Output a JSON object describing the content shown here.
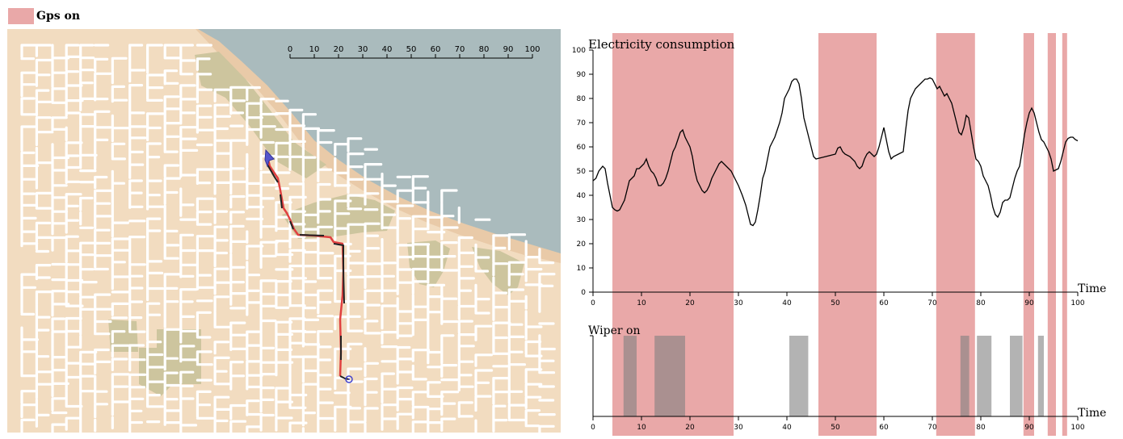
{
  "legend": {
    "label": "Gps on",
    "color": "#e9a8a8"
  },
  "map": {
    "scalebar": {
      "labels": [
        "0",
        "10",
        "20",
        "30",
        "40",
        "50",
        "60",
        "70",
        "80",
        "90",
        "100"
      ]
    },
    "colors": {
      "land": "#f2dcc0",
      "water": "#aabbbd",
      "park": "#cdc59e",
      "road": "#ffffff",
      "route_red": "#e04040",
      "route_black": "#222222",
      "marker": "#4444cc"
    }
  },
  "chart_data": [
    {
      "type": "line",
      "title": "Electricity consumption",
      "xlabel": "Time",
      "ylabel": "",
      "xlim": [
        0,
        100
      ],
      "ylim": [
        0,
        100
      ],
      "xticks": [
        0,
        10,
        20,
        30,
        40,
        50,
        60,
        70,
        80,
        90,
        100
      ],
      "yticks": [
        0,
        10,
        20,
        30,
        40,
        50,
        60,
        70,
        80,
        90,
        100
      ],
      "gps_on_intervals": [
        [
          4,
          29
        ],
        [
          46.5,
          58.5
        ],
        [
          70.8,
          78.8
        ],
        [
          88.8,
          91
        ],
        [
          93.8,
          95.5
        ],
        [
          96.8,
          97.8
        ]
      ],
      "series": [
        {
          "color": "#000000",
          "points": [
            [
              0,
              46
            ],
            [
              0.6,
              47
            ],
            [
              1.2,
              50
            ],
            [
              2,
              52
            ],
            [
              2.5,
              51
            ],
            [
              3,
              45
            ],
            [
              3.5,
              40
            ],
            [
              4,
              35
            ],
            [
              4.5,
              34
            ],
            [
              5,
              33.5
            ],
            [
              5.5,
              34
            ],
            [
              6,
              36
            ],
            [
              6.5,
              38
            ],
            [
              7,
              42
            ],
            [
              7.5,
              46
            ],
            [
              8,
              47
            ],
            [
              8.5,
              48
            ],
            [
              9,
              51
            ],
            [
              9.5,
              51
            ],
            [
              10,
              52
            ],
            [
              10.5,
              53
            ],
            [
              11,
              55
            ],
            [
              11.5,
              52
            ],
            [
              12,
              50
            ],
            [
              12.5,
              49
            ],
            [
              13,
              47
            ],
            [
              13.5,
              44
            ],
            [
              14,
              44
            ],
            [
              14.5,
              45
            ],
            [
              15,
              47
            ],
            [
              15.5,
              50
            ],
            [
              16,
              54
            ],
            [
              16.5,
              58
            ],
            [
              17,
              60
            ],
            [
              17.5,
              63
            ],
            [
              18,
              66
            ],
            [
              18.5,
              67
            ],
            [
              19,
              64
            ],
            [
              19.5,
              62
            ],
            [
              20,
              60
            ],
            [
              20.5,
              56
            ],
            [
              21,
              50
            ],
            [
              21.5,
              46
            ],
            [
              22,
              44
            ],
            [
              22.5,
              42
            ],
            [
              23,
              41
            ],
            [
              23.5,
              42
            ],
            [
              24,
              44
            ],
            [
              24.5,
              47
            ],
            [
              25,
              49
            ],
            [
              25.5,
              51
            ],
            [
              26,
              53
            ],
            [
              26.5,
              54
            ],
            [
              27,
              53
            ],
            [
              27.5,
              52
            ],
            [
              28,
              51
            ],
            [
              28.5,
              50
            ],
            [
              29,
              48
            ],
            [
              30,
              44
            ],
            [
              30.8,
              40
            ],
            [
              31.5,
              36
            ],
            [
              32,
              32
            ],
            [
              32.5,
              28
            ],
            [
              33,
              27.5
            ],
            [
              33.5,
              29
            ],
            [
              34,
              34
            ],
            [
              34.5,
              40
            ],
            [
              35,
              47
            ],
            [
              35.5,
              50
            ],
            [
              36,
              55
            ],
            [
              36.5,
              60
            ],
            [
              37,
              62
            ],
            [
              37.5,
              64
            ],
            [
              38,
              67
            ],
            [
              38.5,
              70
            ],
            [
              39,
              74
            ],
            [
              39.5,
              80
            ],
            [
              40,
              82
            ],
            [
              40.5,
              84
            ],
            [
              41,
              87
            ],
            [
              41.5,
              88
            ],
            [
              42,
              88
            ],
            [
              42.5,
              86
            ],
            [
              43,
              80
            ],
            [
              43.5,
              72
            ],
            [
              44,
              68
            ],
            [
              44.5,
              64
            ],
            [
              45,
              60
            ],
            [
              45.5,
              56
            ],
            [
              46,
              55
            ],
            [
              47,
              55.5
            ],
            [
              48,
              56
            ],
            [
              49,
              56.5
            ],
            [
              50,
              57
            ],
            [
              50.5,
              59.5
            ],
            [
              51,
              60
            ],
            [
              51.5,
              58
            ],
            [
              52,
              57
            ],
            [
              53,
              56
            ],
            [
              54,
              54
            ],
            [
              54.5,
              52
            ],
            [
              55,
              51
            ],
            [
              55.5,
              52
            ],
            [
              56,
              55
            ],
            [
              56.5,
              57
            ],
            [
              57,
              58
            ],
            [
              57.5,
              57
            ],
            [
              58,
              56
            ],
            [
              58.5,
              57
            ],
            [
              59,
              60
            ],
            [
              59.5,
              64
            ],
            [
              60,
              68
            ],
            [
              60.5,
              63
            ],
            [
              61,
              58
            ],
            [
              61.5,
              55
            ],
            [
              62,
              56
            ],
            [
              63,
              57
            ],
            [
              64,
              58
            ],
            [
              64.5,
              67
            ],
            [
              65,
              75
            ],
            [
              65.5,
              80
            ],
            [
              66,
              82
            ],
            [
              66.5,
              84
            ],
            [
              67,
              85
            ],
            [
              67.5,
              86
            ],
            [
              68,
              87
            ],
            [
              68.5,
              88
            ],
            [
              69,
              88
            ],
            [
              69.5,
              88.5
            ],
            [
              70,
              88
            ],
            [
              70.5,
              86
            ],
            [
              71,
              84
            ],
            [
              71.5,
              85
            ],
            [
              72,
              83
            ],
            [
              72.5,
              81
            ],
            [
              73,
              82
            ],
            [
              73.5,
              80
            ],
            [
              74,
              78
            ],
            [
              74.5,
              74
            ],
            [
              75,
              70
            ],
            [
              75.5,
              66
            ],
            [
              76,
              65
            ],
            [
              76.5,
              68
            ],
            [
              77,
              73
            ],
            [
              77.5,
              72
            ],
            [
              78,
              66
            ],
            [
              78.5,
              60
            ],
            [
              79,
              55
            ],
            [
              79.5,
              54
            ],
            [
              80,
              52
            ],
            [
              80.5,
              48
            ],
            [
              81,
              46
            ],
            [
              81.5,
              44
            ],
            [
              82,
              40
            ],
            [
              82.5,
              35
            ],
            [
              83,
              32
            ],
            [
              83.5,
              31
            ],
            [
              84,
              33
            ],
            [
              84.5,
              37
            ],
            [
              85,
              38
            ],
            [
              85.5,
              38
            ],
            [
              86,
              39
            ],
            [
              86.5,
              43
            ],
            [
              87,
              47
            ],
            [
              87.5,
              50
            ],
            [
              88,
              52
            ],
            [
              88.5,
              58
            ],
            [
              89,
              65
            ],
            [
              89.5,
              70
            ],
            [
              90,
              74
            ],
            [
              90.5,
              76
            ],
            [
              91,
              74
            ],
            [
              91.5,
              70
            ],
            [
              92,
              66
            ],
            [
              92.5,
              63
            ],
            [
              93,
              62
            ],
            [
              93.5,
              60
            ],
            [
              94,
              58
            ],
            [
              94.5,
              55
            ],
            [
              95,
              50
            ],
            [
              95.5,
              50.5
            ],
            [
              96,
              51
            ],
            [
              96.5,
              54
            ],
            [
              97,
              58
            ],
            [
              97.5,
              62
            ],
            [
              98,
              63.5
            ],
            [
              98.5,
              64
            ],
            [
              99,
              64
            ],
            [
              99.5,
              63
            ],
            [
              100,
              62.5
            ]
          ]
        }
      ]
    },
    {
      "type": "bar",
      "title": "Wiper on",
      "xlabel": "Time",
      "xlim": [
        0,
        100
      ],
      "xticks": [
        0,
        10,
        20,
        30,
        40,
        50,
        60,
        70,
        80,
        90,
        100
      ],
      "gps_on_intervals": [
        [
          4,
          29
        ],
        [
          46.5,
          58.5
        ],
        [
          70.8,
          78.8
        ],
        [
          88.8,
          91
        ],
        [
          93.8,
          95.5
        ],
        [
          96.8,
          97.8
        ]
      ],
      "bar_color": "#808080",
      "wiper_on_intervals": [
        [
          6.3,
          9
        ],
        [
          12.7,
          19
        ],
        [
          40.5,
          44.4
        ],
        [
          75.8,
          77.6
        ],
        [
          79.2,
          82.2
        ],
        [
          86,
          88.6
        ],
        [
          91.8,
          93
        ]
      ]
    }
  ]
}
